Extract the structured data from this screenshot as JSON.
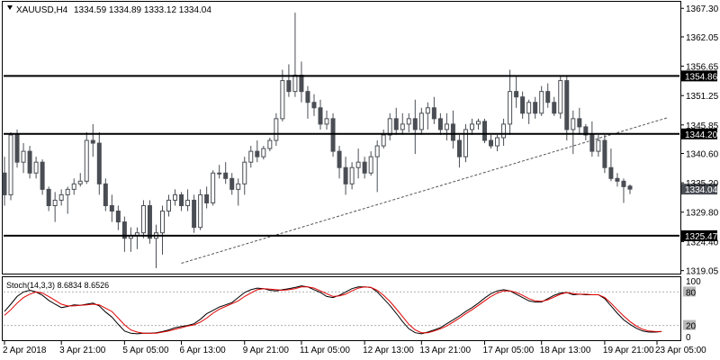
{
  "header": {
    "symbol_label": "XAUUSD,H4",
    "ohlc_text": "1334.59 1334.89 1333.12 1334.04",
    "indicator_label": "Stoch(14,3,3) 8.6834 8.6526"
  },
  "colors": {
    "background": "#ffffff",
    "candle_body": "#4a4e54",
    "candle_up_fill": "#ffffff",
    "level_line": "#000000",
    "trendline": "#555555",
    "stoch_main": "#000000",
    "stoch_signal": "#e00000",
    "stoch_level": "#b0b0b0"
  },
  "chart_data": [
    {
      "type": "candlestick",
      "title": "XAUUSD,H4",
      "ylim": [
        1318.5,
        1368.5
      ],
      "y_ticks": [
        "1367.30",
        "1362.05",
        "1356.65",
        "1351.25",
        "1345.85",
        "1340.60",
        "1335.20",
        "1329.80",
        "1324.40",
        "1319.05"
      ],
      "x_ticks": [
        "2 Apr 2018",
        "3 Apr 21:00",
        "5 Apr 05:00",
        "6 Apr 13:00",
        "9 Apr 21:00",
        "11 Apr 05:00",
        "12 Apr 13:00",
        "13 Apr 21:00",
        "17 Apr 05:00",
        "18 Apr 13:00",
        "19 Apr 21:00",
        "23 Apr 05:00"
      ],
      "horizontal_levels": [
        {
          "value": 1354.86,
          "label": "1354.86"
        },
        {
          "value": 1344.2,
          "label": "1344.20"
        },
        {
          "value": 1325.47,
          "label": "1325.47"
        }
      ],
      "current_price": {
        "value": 1334.04,
        "label": "1334.04"
      },
      "trendline": {
        "from": {
          "bar": 28,
          "price": 1320.4
        },
        "to": {
          "bar": 105,
          "price": 1347.2
        }
      },
      "candles": [
        [
          1337.0,
          1340.0,
          1331.0,
          1333.0
        ],
        [
          1333.0,
          1344.5,
          1332.0,
          1344.0
        ],
        [
          1344.0,
          1345.0,
          1338.0,
          1339.0
        ],
        [
          1339.0,
          1342.5,
          1337.0,
          1341.0
        ],
        [
          1341.0,
          1342.0,
          1336.0,
          1337.0
        ],
        [
          1337.0,
          1340.0,
          1336.0,
          1339.0
        ],
        [
          1339.0,
          1339.5,
          1333.0,
          1334.0
        ],
        [
          1334.0,
          1334.5,
          1330.0,
          1331.0
        ],
        [
          1331.0,
          1333.5,
          1328.0,
          1332.0
        ],
        [
          1332.0,
          1334.0,
          1331.0,
          1333.0
        ],
        [
          1333.0,
          1334.5,
          1329.5,
          1334.0
        ],
        [
          1334.0,
          1336.0,
          1333.0,
          1335.0
        ],
        [
          1335.0,
          1337.0,
          1334.5,
          1335.5
        ],
        [
          1335.5,
          1344.5,
          1335.0,
          1343.0
        ],
        [
          1343.0,
          1346.0,
          1340.0,
          1342.5
        ],
        [
          1342.5,
          1344.5,
          1333.0,
          1335.0
        ],
        [
          1335.0,
          1336.0,
          1330.0,
          1331.0
        ],
        [
          1331.0,
          1333.0,
          1328.0,
          1330.0
        ],
        [
          1330.0,
          1331.0,
          1326.5,
          1328.0
        ],
        [
          1328.0,
          1329.0,
          1322.5,
          1325.0
        ],
        [
          1325.0,
          1327.0,
          1322.5,
          1325.5
        ],
        [
          1325.5,
          1327.0,
          1323.0,
          1326.0
        ],
        [
          1326.0,
          1332.0,
          1325.0,
          1331.0
        ],
        [
          1331.0,
          1332.0,
          1324.0,
          1325.0
        ],
        [
          1325.0,
          1327.5,
          1319.5,
          1326.0
        ],
        [
          1326.0,
          1331.0,
          1322.0,
          1330.0
        ],
        [
          1330.0,
          1333.0,
          1329.0,
          1332.0
        ],
        [
          1332.0,
          1334.0,
          1331.0,
          1333.0
        ],
        [
          1333.0,
          1333.5,
          1330.0,
          1331.0
        ],
        [
          1331.0,
          1334.0,
          1330.0,
          1332.0
        ],
        [
          1332.0,
          1333.0,
          1326.0,
          1327.0
        ],
        [
          1327.0,
          1334.0,
          1326.5,
          1333.0
        ],
        [
          1333.0,
          1334.5,
          1330.5,
          1331.5
        ],
        [
          1331.5,
          1337.5,
          1331.0,
          1337.0
        ],
        [
          1337.0,
          1338.5,
          1336.0,
          1337.0
        ],
        [
          1337.0,
          1339.0,
          1335.0,
          1336.0
        ],
        [
          1336.0,
          1337.0,
          1333.0,
          1334.0
        ],
        [
          1334.0,
          1336.0,
          1331.0,
          1335.0
        ],
        [
          1335.0,
          1340.0,
          1333.0,
          1339.0
        ],
        [
          1339.0,
          1342.0,
          1338.0,
          1341.0
        ],
        [
          1341.0,
          1343.0,
          1339.0,
          1340.0
        ],
        [
          1340.0,
          1342.0,
          1339.5,
          1341.5
        ],
        [
          1341.5,
          1343.5,
          1341.0,
          1343.0
        ],
        [
          1343.0,
          1348.0,
          1342.0,
          1347.0
        ],
        [
          1347.0,
          1356.0,
          1346.5,
          1354.0
        ],
        [
          1354.0,
          1357.0,
          1351.0,
          1352.0
        ],
        [
          1352.0,
          1366.5,
          1351.0,
          1355.0
        ],
        [
          1355.0,
          1357.5,
          1350.0,
          1352.0
        ],
        [
          1352.0,
          1353.0,
          1347.0,
          1350.0
        ],
        [
          1350.0,
          1351.5,
          1347.5,
          1349.0
        ],
        [
          1349.0,
          1350.5,
          1345.0,
          1346.0
        ],
        [
          1346.0,
          1348.5,
          1345.0,
          1347.0
        ],
        [
          1347.0,
          1348.0,
          1340.0,
          1341.0
        ],
        [
          1341.0,
          1342.0,
          1336.0,
          1338.0
        ],
        [
          1338.0,
          1340.0,
          1333.0,
          1335.0
        ],
        [
          1335.0,
          1339.0,
          1334.0,
          1338.0
        ],
        [
          1338.0,
          1341.5,
          1336.0,
          1339.0
        ],
        [
          1339.0,
          1340.0,
          1336.0,
          1337.0
        ],
        [
          1337.0,
          1341.0,
          1336.5,
          1340.0
        ],
        [
          1340.0,
          1343.0,
          1333.5,
          1342.0
        ],
        [
          1342.0,
          1345.0,
          1341.5,
          1344.0
        ],
        [
          1344.0,
          1348.0,
          1343.0,
          1347.0
        ],
        [
          1347.0,
          1349.0,
          1344.0,
          1345.0
        ],
        [
          1345.0,
          1348.0,
          1344.0,
          1346.0
        ],
        [
          1346.0,
          1348.0,
          1344.5,
          1347.0
        ],
        [
          1347.0,
          1350.5,
          1340.5,
          1345.0
        ],
        [
          1345.0,
          1349.0,
          1344.0,
          1348.0
        ],
        [
          1348.0,
          1350.0,
          1345.0,
          1349.0
        ],
        [
          1349.0,
          1351.0,
          1346.0,
          1347.0
        ],
        [
          1347.0,
          1348.0,
          1344.0,
          1345.0
        ],
        [
          1345.0,
          1348.0,
          1343.0,
          1346.0
        ],
        [
          1346.0,
          1348.5,
          1341.5,
          1343.0
        ],
        [
          1343.0,
          1344.0,
          1338.0,
          1340.0
        ],
        [
          1340.0,
          1346.0,
          1339.0,
          1345.0
        ],
        [
          1345.0,
          1347.0,
          1344.0,
          1346.0
        ],
        [
          1346.0,
          1347.0,
          1345.0,
          1346.5
        ],
        [
          1346.5,
          1347.0,
          1342.5,
          1343.0
        ],
        [
          1343.0,
          1344.0,
          1341.5,
          1342.0
        ],
        [
          1342.0,
          1344.0,
          1341.0,
          1343.5
        ],
        [
          1343.5,
          1347.0,
          1342.0,
          1346.0
        ],
        [
          1346.0,
          1356.0,
          1344.0,
          1352.0
        ],
        [
          1352.0,
          1355.0,
          1349.0,
          1351.0
        ],
        [
          1351.0,
          1352.0,
          1347.0,
          1348.0
        ],
        [
          1348.0,
          1350.5,
          1346.0,
          1350.0
        ],
        [
          1350.0,
          1351.0,
          1347.0,
          1348.0
        ],
        [
          1348.0,
          1353.0,
          1347.5,
          1352.0
        ],
        [
          1352.0,
          1353.5,
          1349.0,
          1350.0
        ],
        [
          1350.0,
          1351.0,
          1347.5,
          1348.0
        ],
        [
          1348.0,
          1355.0,
          1347.0,
          1354.0
        ],
        [
          1354.0,
          1355.0,
          1343.0,
          1345.0
        ],
        [
          1345.0,
          1348.5,
          1340.5,
          1347.0
        ],
        [
          1347.0,
          1349.0,
          1344.0,
          1345.5
        ],
        [
          1345.5,
          1346.0,
          1343.0,
          1344.0
        ],
        [
          1344.0,
          1346.5,
          1340.0,
          1341.0
        ],
        [
          1341.0,
          1344.0,
          1340.0,
          1343.0
        ],
        [
          1343.0,
          1344.0,
          1337.0,
          1338.0
        ],
        [
          1338.0,
          1341.5,
          1335.5,
          1336.0
        ],
        [
          1336.0,
          1337.0,
          1334.5,
          1335.5
        ],
        [
          1335.5,
          1336.0,
          1331.5,
          1334.5
        ],
        [
          1334.59,
          1334.89,
          1333.12,
          1334.04
        ]
      ]
    },
    {
      "type": "line",
      "title": "Stoch(14,3,3) 8.6834 8.6526",
      "ylim": [
        0,
        100
      ],
      "y_ticks": [
        "100",
        "80",
        "20",
        "0"
      ],
      "levels": [
        80,
        20
      ],
      "series": [
        {
          "name": "Stoch main",
          "values": [
            45,
            58,
            72,
            80,
            83,
            80,
            74,
            65,
            58,
            52,
            54,
            57,
            56,
            58,
            60,
            55,
            44,
            35,
            22,
            10,
            6,
            5,
            6,
            6,
            7,
            9,
            12,
            16,
            18,
            20,
            23,
            31,
            41,
            47,
            53,
            57,
            61,
            70,
            79,
            84,
            87,
            86,
            83,
            82,
            84,
            86,
            88,
            91,
            89,
            84,
            79,
            72,
            70,
            74,
            80,
            86,
            89,
            89,
            88,
            80,
            68,
            56,
            42,
            27,
            14,
            7,
            5,
            8,
            12,
            16,
            23,
            30,
            37,
            45,
            52,
            60,
            69,
            77,
            82,
            84,
            82,
            76,
            70,
            64,
            62,
            62,
            68,
            74,
            78,
            79,
            75,
            76,
            75,
            75,
            75,
            68,
            55,
            42,
            30,
            22,
            15,
            10,
            8,
            8,
            9
          ]
        },
        {
          "name": "Stoch signal",
          "values": [
            38,
            48,
            60,
            70,
            76,
            80,
            78,
            72,
            65,
            58,
            55,
            55,
            56,
            57,
            58,
            57,
            51,
            45,
            33,
            21,
            12,
            8,
            6,
            6,
            6,
            8,
            10,
            13,
            16,
            19,
            21,
            26,
            33,
            42,
            49,
            54,
            59,
            64,
            72,
            78,
            84,
            86,
            85,
            84,
            83,
            84,
            86,
            89,
            89,
            87,
            82,
            77,
            72,
            73,
            76,
            82,
            87,
            89,
            88,
            83,
            74,
            63,
            50,
            36,
            22,
            12,
            7,
            7,
            10,
            14,
            19,
            26,
            33,
            41,
            48,
            56,
            64,
            72,
            78,
            82,
            82,
            79,
            74,
            68,
            64,
            63,
            66,
            71,
            76,
            79,
            77,
            76,
            76,
            75,
            75,
            70,
            60,
            48,
            37,
            27,
            19,
            13,
            10,
            9,
            9
          ]
        }
      ]
    }
  ]
}
